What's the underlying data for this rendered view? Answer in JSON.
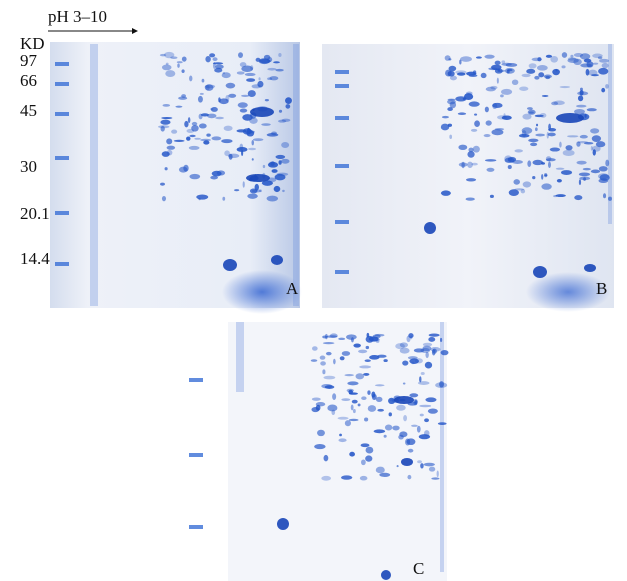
{
  "header": {
    "ph_label": "pH 3–10",
    "unit": "KD"
  },
  "markers": [
    "97",
    "66",
    "45",
    "30",
    "20.1",
    "14.4"
  ],
  "panels": [
    "A",
    "B",
    "C"
  ]
}
